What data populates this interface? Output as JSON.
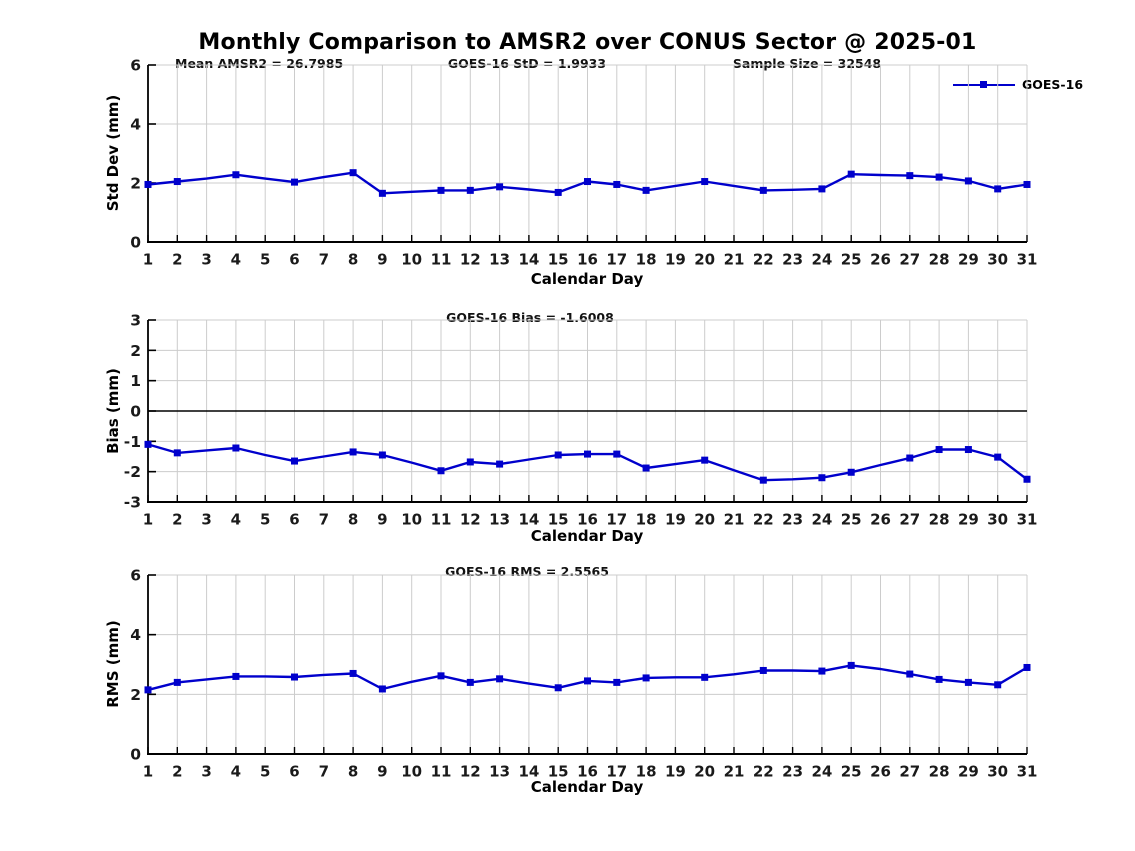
{
  "page": {
    "title": "Monthly Comparison to AMSR2 over CONUS Sector @ 2025-01"
  },
  "legend": {
    "label": "GOES-16"
  },
  "axes": {
    "xlabel": "Calendar Day"
  },
  "colors": {
    "line": "#0000cc",
    "grid": "#cccccc",
    "axis": "#000000",
    "tick_text": "#1a1a1a"
  },
  "chart_data": [
    {
      "id": "std_dev",
      "type": "line",
      "ylabel": "Std Dev (mm)",
      "xlabel": "Calendar Day",
      "ylim": [
        0,
        6
      ],
      "yticks": [
        0,
        2,
        4,
        6
      ],
      "grid": true,
      "annotations": [
        {
          "text": "Mean AMSR2 = 26.7985"
        },
        {
          "text": "GOES-16 StD = 1.9933"
        },
        {
          "text": "Sample Size = 32548"
        }
      ],
      "series": [
        {
          "name": "GOES-16",
          "x": [
            1,
            2,
            3,
            4,
            5,
            6,
            7,
            8,
            9,
            10,
            11,
            12,
            13,
            14,
            15,
            16,
            17,
            18,
            19,
            20,
            21,
            22,
            23,
            24,
            25,
            26,
            27,
            28,
            29,
            30,
            31
          ],
          "values": [
            1.95,
            2.05,
            2.15,
            2.28,
            2.15,
            2.03,
            2.2,
            2.35,
            1.65,
            1.7,
            1.75,
            1.75,
            1.87,
            1.78,
            1.68,
            2.05,
            1.95,
            1.75,
            1.9,
            2.05,
            1.9,
            1.75,
            1.77,
            1.8,
            2.3,
            2.27,
            2.25,
            2.2,
            2.07,
            1.8,
            1.95
          ],
          "marker_days": [
            1,
            2,
            4,
            6,
            8,
            9,
            11,
            12,
            13,
            15,
            16,
            17,
            18,
            20,
            22,
            24,
            25,
            27,
            28,
            29,
            30,
            31
          ]
        }
      ]
    },
    {
      "id": "bias",
      "type": "line",
      "ylabel": "Bias (mm)",
      "xlabel": "Calendar Day",
      "ylim": [
        -3,
        3
      ],
      "yticks": [
        -3,
        -2,
        -1,
        0,
        1,
        2,
        3
      ],
      "grid": true,
      "zero_line": true,
      "annotations": [
        {
          "text": "GOES-16 Bias = -1.6008"
        }
      ],
      "series": [
        {
          "name": "GOES-16",
          "x": [
            1,
            2,
            3,
            4,
            5,
            6,
            7,
            8,
            9,
            10,
            11,
            12,
            13,
            14,
            15,
            16,
            17,
            18,
            19,
            20,
            21,
            22,
            23,
            24,
            25,
            26,
            27,
            28,
            29,
            30,
            31
          ],
          "values": [
            -1.1,
            -1.38,
            -1.3,
            -1.22,
            -1.45,
            -1.65,
            -1.5,
            -1.35,
            -1.45,
            -1.7,
            -1.97,
            -1.68,
            -1.75,
            -1.6,
            -1.45,
            -1.42,
            -1.42,
            -1.88,
            -1.75,
            -1.62,
            -1.95,
            -2.28,
            -2.25,
            -2.2,
            -2.02,
            -1.78,
            -1.55,
            -1.27,
            -1.27,
            -1.52,
            -2.25
          ],
          "marker_days": [
            1,
            2,
            4,
            6,
            8,
            9,
            11,
            12,
            13,
            15,
            16,
            17,
            18,
            20,
            22,
            24,
            25,
            27,
            28,
            29,
            30,
            31
          ]
        }
      ]
    },
    {
      "id": "rms",
      "type": "line",
      "ylabel": "RMS (mm)",
      "xlabel": "Calendar Day",
      "ylim": [
        0,
        6
      ],
      "yticks": [
        0,
        2,
        4,
        6
      ],
      "grid": true,
      "annotations": [
        {
          "text": "GOES-16 RMS = 2.5565"
        }
      ],
      "series": [
        {
          "name": "GOES-16",
          "x": [
            1,
            2,
            3,
            4,
            5,
            6,
            7,
            8,
            9,
            10,
            11,
            12,
            13,
            14,
            15,
            16,
            17,
            18,
            19,
            20,
            21,
            22,
            23,
            24,
            25,
            26,
            27,
            28,
            29,
            30,
            31
          ],
          "values": [
            2.15,
            2.4,
            2.5,
            2.6,
            2.6,
            2.58,
            2.65,
            2.7,
            2.18,
            2.42,
            2.62,
            2.4,
            2.52,
            2.36,
            2.22,
            2.45,
            2.4,
            2.55,
            2.57,
            2.57,
            2.67,
            2.8,
            2.8,
            2.78,
            2.97,
            2.85,
            2.68,
            2.5,
            2.4,
            2.32,
            2.9
          ],
          "marker_days": [
            1,
            2,
            4,
            6,
            8,
            9,
            11,
            12,
            13,
            15,
            16,
            17,
            18,
            20,
            22,
            24,
            25,
            27,
            28,
            29,
            30,
            31
          ]
        }
      ]
    }
  ]
}
